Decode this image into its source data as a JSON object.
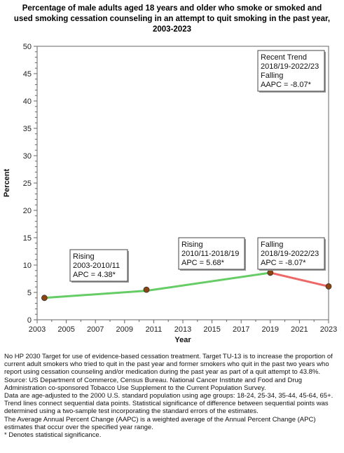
{
  "chart_data": {
    "type": "line",
    "title": [
      "Percentage of  male adults  aged 18 years and older who smoke or smoked and",
      "used smoking cessation counseling in an attempt to quit smoking in the past year,",
      "2003-2023"
    ],
    "xlabel": "Year",
    "ylabel": "Percent",
    "xlim": [
      2003,
      2023
    ],
    "ylim": [
      0,
      50
    ],
    "xticks": [
      2003,
      2005,
      2007,
      2009,
      2011,
      2013,
      2015,
      2017,
      2019,
      2021,
      2023
    ],
    "yticks": [
      0,
      5,
      10,
      15,
      20,
      25,
      30,
      35,
      40,
      45,
      50
    ],
    "grid": false,
    "points": [
      {
        "x": 2003.5,
        "y": 4.0
      },
      {
        "x": 2010.5,
        "y": 5.5
      },
      {
        "x": 2019.0,
        "y": 8.6
      },
      {
        "x": 2023.0,
        "y": 6.1
      }
    ],
    "trends": [
      {
        "from": [
          2003.5,
          4.0
        ],
        "to": [
          2010.5,
          5.3
        ],
        "color": "#66cc66"
      },
      {
        "from": [
          2010.5,
          5.3
        ],
        "to": [
          2019.0,
          8.6
        ],
        "color": "#66cc66"
      },
      {
        "from": [
          2019.0,
          8.6
        ],
        "to": [
          2023.0,
          6.1
        ],
        "color": "#ee6666"
      }
    ],
    "annotations": [
      {
        "lines": [
          "Recent Trend",
          "2018/19-2022/23",
          "Falling",
          "AAPC = -8.07*"
        ]
      },
      {
        "lines": [
          "Rising",
          "2003-2010/11",
          "APC =  4.38*"
        ]
      },
      {
        "lines": [
          "Rising",
          "2010/11-2018/19",
          "APC =  5.68*"
        ]
      },
      {
        "lines": [
          "Falling",
          "2018/19-2022/23",
          "APC = -8.07*"
        ]
      }
    ],
    "colors": {
      "rising": "#66cc66",
      "falling": "#ee6666",
      "marker": "#8b4513"
    }
  },
  "footnotes": [
    "No HP 2030 Target for use of evidence-based cessation treatment. Target TU-13 is to increase the proportion of current adult smokers who tried to quit in the past year and former smokers who quit in the past two years who report using cessation counseling and/or medication during the past year as part of a quit attempt to 43.8%.",
    "Source: US Department of Commerce, Census Bureau. National Cancer Institute and Food and Drug Administration co-sponsored Tobacco Use Supplement to the Current Population Survey.",
    "Data are age-adjusted to the 2000 U.S. standard population using age groups: 18-24, 25-34, 35-44, 45-64, 65+.",
    "Trend lines connect sequential data points. Statistical significance of difference between sequential points was determined using a two-sample test incorporating the standard errors of the estimates.",
    "The Average Annual Percent Change (AAPC) is a weighted average of the Annual Percent Change (APC) estimates that occur over the specified year range.",
    "* Denotes statistical significance."
  ]
}
